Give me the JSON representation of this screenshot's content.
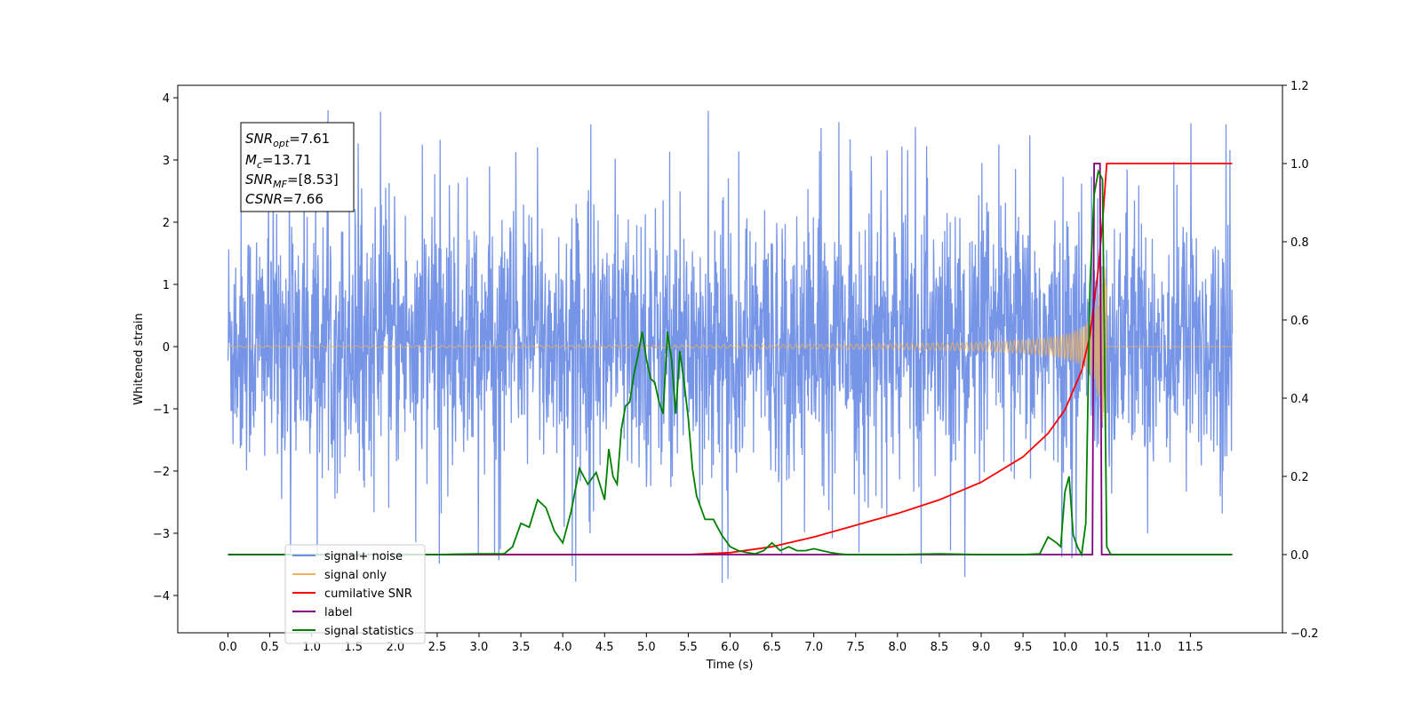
{
  "chart_data": {
    "type": "line",
    "xlabel": "Time (s)",
    "ylabel": "Whitened strain",
    "xlim": [
      -0.6,
      12.6
    ],
    "ylim": [
      -4.6,
      4.2
    ],
    "y2lim": [
      -0.2,
      1.2
    ],
    "x_ticks": [
      "0.0",
      "0.5",
      "1.0",
      "1.5",
      "2.0",
      "2.5",
      "3.0",
      "3.5",
      "4.0",
      "4.5",
      "5.0",
      "5.5",
      "6.0",
      "6.5",
      "7.0",
      "7.5",
      "8.0",
      "8.5",
      "9.0",
      "9.5",
      "10.0",
      "10.5",
      "11.0",
      "11.5"
    ],
    "y_ticks": [
      "4",
      "3",
      "2",
      "1",
      "0",
      "−1",
      "−2",
      "−3",
      "−4"
    ],
    "y2_ticks": [
      "1.2",
      "1.0",
      "0.8",
      "0.6",
      "0.4",
      "0.2",
      "0.0",
      "−0.2"
    ],
    "legend_placement": "lower-left",
    "colors": {
      "signal_noise": "#6f8fe6",
      "signal_only": "#f0b25a",
      "cumulative_snr": "#ff0000",
      "label": "#800080",
      "signal_statistics": "#008000"
    },
    "annotation": {
      "snr_opt": {
        "base": "SNR",
        "sub": "opt",
        "value": "=7.61"
      },
      "mc": {
        "base": "M",
        "sub": "c",
        "value": "=13.71"
      },
      "snr_mf": {
        "base": "SNR",
        "sub": "MF",
        "value": "=[8.53]"
      },
      "csnr": {
        "base": "CSNR",
        "sub": "",
        "value": "=7.66"
      }
    },
    "series": [
      {
        "name": "signal+ noise",
        "axis": "left",
        "noise_band": [
          -2.0,
          2.2
        ],
        "extremes": [
          -4.1,
          3.8
        ],
        "x_range": [
          0.0,
          12.0
        ]
      },
      {
        "name": "signal only",
        "axis": "left",
        "merger_time": 10.5,
        "peak_amplitude": 1.3
      },
      {
        "name": "cumilative SNR",
        "axis": "right",
        "x": [
          0.0,
          5.5,
          6.0,
          6.5,
          7.0,
          7.5,
          8.0,
          8.5,
          9.0,
          9.5,
          9.8,
          10.0,
          10.2,
          10.3,
          10.4,
          10.45,
          10.5,
          12.0
        ],
        "y": [
          0.0,
          0.0,
          0.005,
          0.02,
          0.045,
          0.075,
          0.105,
          0.14,
          0.185,
          0.25,
          0.31,
          0.37,
          0.47,
          0.56,
          0.73,
          0.85,
          1.0,
          1.0
        ]
      },
      {
        "name": "label",
        "axis": "right",
        "x": [
          0.0,
          10.33,
          10.35,
          10.42,
          10.44,
          10.5,
          12.0
        ],
        "y": [
          0.0,
          0.0,
          1.0,
          1.0,
          0.0,
          0.0,
          0.0
        ]
      },
      {
        "name": "signal statistics",
        "axis": "right",
        "x": [
          0.0,
          2.5,
          3.0,
          3.3,
          3.4,
          3.5,
          3.6,
          3.7,
          3.8,
          3.9,
          4.0,
          4.1,
          4.2,
          4.3,
          4.4,
          4.5,
          4.55,
          4.6,
          4.65,
          4.7,
          4.75,
          4.8,
          4.85,
          4.9,
          4.95,
          5.0,
          5.05,
          5.1,
          5.15,
          5.2,
          5.25,
          5.3,
          5.35,
          5.4,
          5.45,
          5.5,
          5.55,
          5.6,
          5.7,
          5.8,
          5.9,
          6.0,
          6.1,
          6.2,
          6.3,
          6.4,
          6.5,
          6.6,
          6.7,
          6.8,
          6.9,
          7.0,
          7.1,
          7.2,
          7.3,
          7.4,
          7.6,
          8.0,
          8.5,
          9.0,
          9.5,
          9.7,
          9.8,
          9.9,
          9.95,
          10.0,
          10.05,
          10.1,
          10.15,
          10.2,
          10.25,
          10.3,
          10.35,
          10.4,
          10.45,
          10.5,
          10.55,
          10.6,
          12.0
        ],
        "y": [
          0.0,
          0.0,
          0.002,
          0.002,
          0.02,
          0.08,
          0.07,
          0.14,
          0.12,
          0.06,
          0.03,
          0.11,
          0.22,
          0.18,
          0.21,
          0.14,
          0.27,
          0.2,
          0.18,
          0.32,
          0.38,
          0.39,
          0.46,
          0.51,
          0.57,
          0.5,
          0.45,
          0.44,
          0.39,
          0.36,
          0.57,
          0.5,
          0.36,
          0.52,
          0.44,
          0.35,
          0.22,
          0.15,
          0.09,
          0.09,
          0.05,
          0.02,
          0.01,
          0.005,
          0.002,
          0.01,
          0.03,
          0.01,
          0.02,
          0.01,
          0.01,
          0.015,
          0.01,
          0.005,
          0.002,
          0.0,
          0.0,
          0.0,
          0.002,
          0.0,
          0.0,
          0.002,
          0.045,
          0.03,
          0.02,
          0.16,
          0.2,
          0.05,
          0.02,
          0.0,
          0.08,
          0.69,
          0.92,
          0.98,
          0.96,
          0.02,
          0.0,
          0.0,
          0.0
        ]
      }
    ]
  }
}
